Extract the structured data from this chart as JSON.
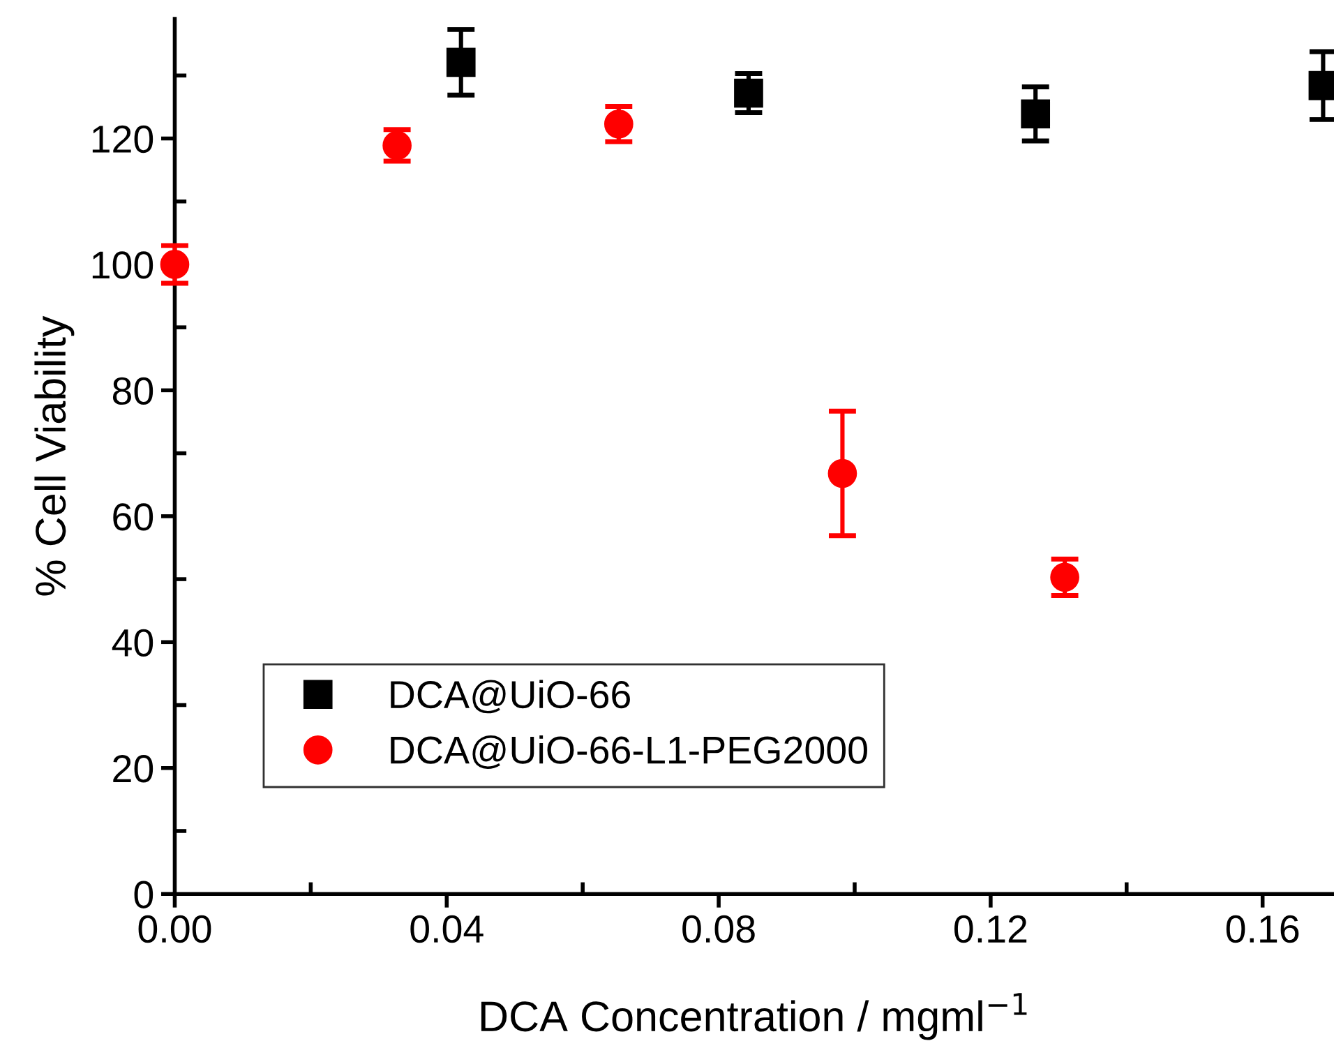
{
  "chart_data": {
    "type": "scatter",
    "xlabel": "DCA Concentration / mgml$^{−1}$",
    "ylabel": "% Cell Viability",
    "xlim": [
      0,
      0.1705
    ],
    "ylim": [
      0,
      139
    ],
    "xticks": [
      {
        "value": 0,
        "label": "0.00"
      },
      {
        "value": 0.02,
        "label": null
      },
      {
        "value": 0.04,
        "label": "0.04"
      },
      {
        "value": 0.06,
        "label": null
      },
      {
        "value": 0.08,
        "label": "0.08"
      },
      {
        "value": 0.1,
        "label": null
      },
      {
        "value": 0.12,
        "label": "0.12"
      },
      {
        "value": 0.14,
        "label": null
      },
      {
        "value": 0.16,
        "label": "0.16"
      }
    ],
    "yticks": [
      0,
      {
        "value": 10,
        "label": null
      },
      20,
      {
        "value": 30,
        "label": null
      },
      40,
      {
        "value": 50,
        "label": null
      },
      60,
      {
        "value": 70,
        "label": null
      },
      80,
      {
        "value": 90,
        "label": null
      },
      100,
      {
        "value": 110,
        "label": null
      },
      120,
      {
        "value": 130,
        "label": null
      }
    ],
    "legend": "bottom left",
    "grid": false,
    "series": [
      {
        "name": "DCA@UiO-66",
        "color": "#000000",
        "marker": "square",
        "x": [
          0.0421,
          0.0844,
          0.1266,
          0.1689
        ],
        "values": [
          132.1,
          127.2,
          123.9,
          128.4
        ],
        "errors": [
          5.2,
          3.1,
          4.3,
          5.4
        ]
      },
      {
        "name": "DCA@UiO-66-L1-PEG2000",
        "color": "#ff0000",
        "marker": "circle",
        "x": [
          0,
          0.0327,
          0.0653,
          0.0982,
          0.1309
        ],
        "values": [
          100,
          118.9,
          122.3,
          66.8,
          50.3
        ],
        "errors": [
          3,
          2.5,
          2.8,
          9.9,
          2.9
        ]
      }
    ]
  }
}
